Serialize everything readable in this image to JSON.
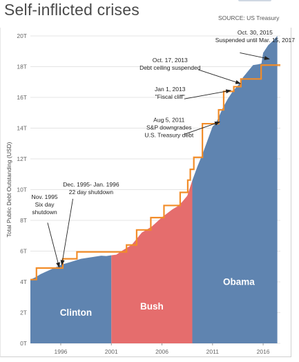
{
  "header": {
    "title": "Self-inflicted crises",
    "source": "SOURCE: US Treasury"
  },
  "colors": {
    "clinton": "#5f84b0",
    "bush": "#e56d6d",
    "obama": "#5f84b0",
    "ceiling": "#f28c28",
    "grid": "#e4e4e4"
  },
  "chart_data": {
    "type": "area",
    "title": "Self-inflicted crises",
    "ylabel": "Total Public Debt Outstanding (USD)",
    "xlabel": "",
    "xlim": [
      1993.0,
      2017.7
    ],
    "ylim": [
      0,
      20
    ],
    "x_ticks": [
      {
        "value": 1996,
        "label": "1996"
      },
      {
        "value": 2001,
        "label": "2001"
      },
      {
        "value": 2006,
        "label": "2006"
      },
      {
        "value": 2011,
        "label": "2011"
      },
      {
        "value": 2016,
        "label": "2016"
      }
    ],
    "y_ticks": [
      {
        "value": 0,
        "label": "0T"
      },
      {
        "value": 2,
        "label": "2T"
      },
      {
        "value": 4,
        "label": "4T"
      },
      {
        "value": 6,
        "label": "6T"
      },
      {
        "value": 8,
        "label": "8T"
      },
      {
        "value": 10,
        "label": "10T"
      },
      {
        "value": 12,
        "label": "12T"
      },
      {
        "value": 14,
        "label": "14T"
      },
      {
        "value": 16,
        "label": "16T"
      },
      {
        "value": 18,
        "label": "18T"
      },
      {
        "value": 20,
        "label": "20T"
      }
    ],
    "grid": "horizontal",
    "series": [
      {
        "name": "Clinton",
        "x": [
          1993.0,
          1993.5,
          1994.0,
          1994.5,
          1995.0,
          1995.5,
          1996.0,
          1996.5,
          1997.0,
          1997.5,
          1998.0,
          1998.5,
          1999.0,
          1999.5,
          2000.0,
          2000.5,
          2001.0
        ],
        "y": [
          4.15,
          4.3,
          4.5,
          4.65,
          4.8,
          4.95,
          5.1,
          5.2,
          5.3,
          5.4,
          5.5,
          5.55,
          5.6,
          5.65,
          5.7,
          5.68,
          5.73
        ]
      },
      {
        "name": "Bush",
        "x": [
          2001.0,
          2001.5,
          2002.0,
          2002.5,
          2003.0,
          2003.5,
          2004.0,
          2004.5,
          2005.0,
          2005.5,
          2006.0,
          2006.5,
          2007.0,
          2007.5,
          2008.0,
          2008.5,
          2009.0
        ],
        "y": [
          5.73,
          5.77,
          6.0,
          6.2,
          6.4,
          6.8,
          7.2,
          7.4,
          7.6,
          7.9,
          8.2,
          8.45,
          8.7,
          8.9,
          9.2,
          9.6,
          10.6
        ]
      },
      {
        "name": "Obama",
        "x": [
          2009.0,
          2009.5,
          2010.0,
          2010.5,
          2011.0,
          2011.3,
          2011.6,
          2012.0,
          2012.5,
          2013.0,
          2013.4,
          2013.8,
          2014.0,
          2014.5,
          2015.0,
          2015.5,
          2015.83,
          2016.0,
          2016.5,
          2017.0,
          2017.4
        ],
        "y": [
          10.6,
          11.5,
          12.3,
          13.2,
          14.1,
          14.29,
          14.7,
          15.3,
          15.9,
          16.4,
          16.7,
          17.0,
          17.3,
          17.7,
          18.1,
          18.15,
          18.2,
          18.9,
          19.4,
          19.7,
          20.0
        ]
      }
    ],
    "debt_ceiling": {
      "name": "Debt ceiling",
      "x": [
        1993.0,
        1993.6,
        1996.2,
        1997.6,
        2002.5,
        2003.5,
        2004.9,
        2006.2,
        2007.8,
        2008.55,
        2008.8,
        2009.15,
        2010.0,
        2011.6,
        2012.1,
        2013.1,
        2013.5,
        2013.8,
        2014.1,
        2015.8,
        2017.7
      ],
      "y": [
        4.15,
        4.9,
        5.5,
        5.95,
        6.4,
        7.38,
        8.18,
        8.97,
        9.82,
        10.62,
        11.32,
        12.1,
        14.29,
        15.19,
        16.39,
        16.7,
        16.7,
        17.2,
        17.2,
        18.1,
        18.1
      ]
    },
    "area_labels": [
      {
        "text": "Clinton",
        "x": 1997.5,
        "y": 1.8
      },
      {
        "text": "Bush",
        "x": 2005.0,
        "y": 2.2
      },
      {
        "text": "Obama",
        "x": 2013.6,
        "y": 3.8
      }
    ],
    "annotations": [
      {
        "lines": [
          "Nov. 1995",
          "Six day",
          "shutdown"
        ],
        "text_x": 1994.4,
        "text_y": 9.4,
        "arrow_from_x": 1994.7,
        "arrow_from_y": 7.85,
        "arrow_to_x": 1995.85,
        "arrow_to_y": 4.95
      },
      {
        "lines": [
          "Dec. 1995- Jan. 1996",
          "22 day shutdown"
        ],
        "text_x": 1999.0,
        "text_y": 10.2,
        "arrow_from_x": 1997.2,
        "arrow_from_y": 9.4,
        "arrow_to_x": 1996.1,
        "arrow_to_y": 5.1
      },
      {
        "lines": [
          "Aug 5, 2011",
          "S&P downgrades",
          "U.S. Treasury debt"
        ],
        "text_x": 2006.7,
        "text_y": 14.4,
        "arrow_from_x": 2008.2,
        "arrow_from_y": 13.6,
        "arrow_to_x": 2011.7,
        "arrow_to_y": 14.4
      },
      {
        "lines": [
          "Jan 1, 2013",
          "\"Fiscal cliff\""
        ],
        "text_x": 2006.8,
        "text_y": 16.4,
        "arrow_from_x": 2008.2,
        "arrow_from_y": 15.9,
        "arrow_to_x": 2012.8,
        "arrow_to_y": 16.45
      },
      {
        "lines": [
          "Oct. 17, 2013",
          "Debt ceiling suspended"
        ],
        "text_x": 2006.8,
        "text_y": 18.3,
        "arrow_from_x": 2009.6,
        "arrow_from_y": 17.8,
        "arrow_to_x": 2013.75,
        "arrow_to_y": 16.9
      },
      {
        "lines": [
          "Oct. 30, 2015",
          "Suspended until Mar. 15, 2017"
        ],
        "text_x": 2015.2,
        "text_y": 20.1,
        "arrow_from_x": 2013.7,
        "arrow_from_y": 18.9,
        "arrow_to_x": 2016.6,
        "arrow_to_y": 18.5
      }
    ]
  }
}
